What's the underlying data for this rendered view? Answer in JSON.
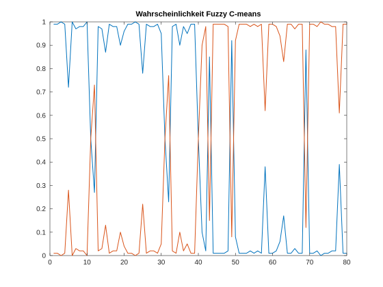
{
  "chart_data": {
    "type": "line",
    "title": "Wahrscheinlichkeit Fuzzy C-means",
    "xlabel": "",
    "ylabel": "",
    "xlim": [
      0,
      80
    ],
    "ylim": [
      0,
      1
    ],
    "xticks": [
      0,
      10,
      20,
      30,
      40,
      50,
      60,
      70,
      80
    ],
    "yticks": [
      0,
      0.1,
      0.2,
      0.3,
      0.4,
      0.5,
      0.6,
      0.7,
      0.8,
      0.9,
      1
    ],
    "grid": false,
    "x": [
      1,
      2,
      3,
      4,
      5,
      6,
      7,
      8,
      9,
      10,
      11,
      12,
      13,
      14,
      15,
      16,
      17,
      18,
      19,
      20,
      21,
      22,
      23,
      24,
      25,
      26,
      27,
      28,
      29,
      30,
      31,
      32,
      33,
      34,
      35,
      36,
      37,
      38,
      39,
      40,
      41,
      42,
      43,
      44,
      45,
      46,
      47,
      48,
      49,
      50,
      51,
      52,
      53,
      54,
      55,
      56,
      57,
      58,
      59,
      60,
      61,
      62,
      63,
      64,
      65,
      66,
      67,
      68,
      69,
      70,
      71,
      72,
      73,
      74,
      75,
      76,
      77,
      78,
      79,
      80
    ],
    "series": [
      {
        "color": "#0072BD",
        "values": [
          0.99,
          0.99,
          1.0,
          0.99,
          0.72,
          1.0,
          0.97,
          0.98,
          0.98,
          1.0,
          0.5,
          0.27,
          0.98,
          0.97,
          0.87,
          0.99,
          0.98,
          0.98,
          0.9,
          0.96,
          0.99,
          0.99,
          1.0,
          0.99,
          0.78,
          0.99,
          0.98,
          0.98,
          0.99,
          0.95,
          0.5,
          0.23,
          0.98,
          0.99,
          0.9,
          0.98,
          0.95,
          0.99,
          0.99,
          0.5,
          0.1,
          0.02,
          0.85,
          0.01,
          0.01,
          0.01,
          0.01,
          0.02,
          0.92,
          0.08,
          0.01,
          0.01,
          0.01,
          0.02,
          0.01,
          0.02,
          0.01,
          0.38,
          0.01,
          0.01,
          0.02,
          0.06,
          0.17,
          0.01,
          0.01,
          0.03,
          0.01,
          0.01,
          0.88,
          0.01,
          0.01,
          0.02,
          0.0,
          0.01,
          0.01,
          0.02,
          0.02,
          0.39,
          0.01,
          0.01
        ]
      },
      {
        "color": "#D95319",
        "values": [
          0.01,
          0.01,
          0.0,
          0.01,
          0.28,
          0.0,
          0.03,
          0.02,
          0.02,
          0.0,
          0.5,
          0.73,
          0.02,
          0.03,
          0.13,
          0.01,
          0.02,
          0.02,
          0.1,
          0.04,
          0.01,
          0.01,
          0.0,
          0.01,
          0.22,
          0.01,
          0.02,
          0.02,
          0.01,
          0.05,
          0.5,
          0.77,
          0.02,
          0.01,
          0.1,
          0.02,
          0.05,
          0.01,
          0.01,
          0.5,
          0.9,
          0.98,
          0.15,
          0.99,
          0.99,
          0.99,
          0.99,
          0.98,
          0.08,
          0.92,
          0.99,
          0.99,
          0.99,
          0.98,
          0.99,
          0.98,
          0.99,
          0.62,
          0.99,
          0.99,
          0.98,
          0.94,
          0.83,
          0.99,
          0.99,
          0.97,
          0.99,
          0.99,
          0.12,
          0.99,
          0.99,
          0.98,
          1.0,
          0.99,
          0.99,
          0.98,
          0.98,
          0.61,
          0.99,
          0.99
        ]
      }
    ]
  }
}
